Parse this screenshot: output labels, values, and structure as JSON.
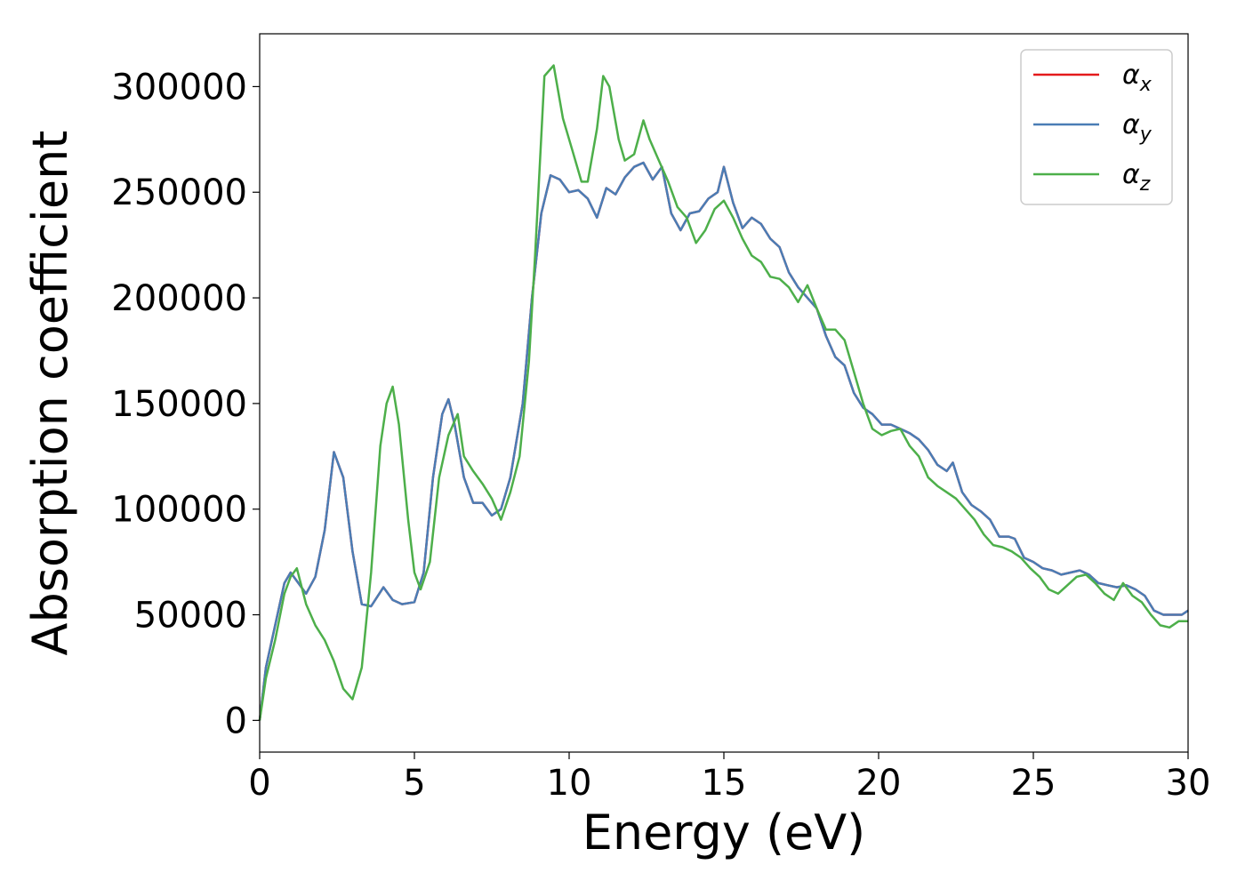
{
  "chart_data": {
    "type": "line",
    "title": "",
    "xlabel": "Energy (eV)",
    "ylabel": "Absorption coefficient",
    "xlim": [
      0,
      30
    ],
    "ylim": [
      -15000,
      325000
    ],
    "x_ticks": [
      0,
      5,
      10,
      15,
      20,
      25,
      30
    ],
    "y_ticks": [
      0,
      50000,
      100000,
      150000,
      200000,
      250000,
      300000
    ],
    "grid": false,
    "legend_position": "top-right",
    "series": [
      {
        "name": "α",
        "subscript": "x",
        "color": "#e41a1c",
        "points": [
          [
            0,
            0
          ],
          [
            0.2,
            25000
          ],
          [
            0.5,
            45000
          ],
          [
            0.8,
            65000
          ],
          [
            1.0,
            70000
          ],
          [
            1.2,
            66000
          ],
          [
            1.5,
            60000
          ],
          [
            1.8,
            68000
          ],
          [
            2.1,
            90000
          ],
          [
            2.4,
            127000
          ],
          [
            2.7,
            115000
          ],
          [
            3.0,
            80000
          ],
          [
            3.3,
            55000
          ],
          [
            3.6,
            54000
          ],
          [
            4.0,
            63000
          ],
          [
            4.3,
            57000
          ],
          [
            4.6,
            55000
          ],
          [
            5.0,
            56000
          ],
          [
            5.3,
            70000
          ],
          [
            5.6,
            115000
          ],
          [
            5.9,
            145000
          ],
          [
            6.1,
            152000
          ],
          [
            6.3,
            140000
          ],
          [
            6.6,
            115000
          ],
          [
            6.9,
            103000
          ],
          [
            7.2,
            103000
          ],
          [
            7.5,
            97000
          ],
          [
            7.8,
            100000
          ],
          [
            8.1,
            115000
          ],
          [
            8.5,
            150000
          ],
          [
            8.8,
            200000
          ],
          [
            9.1,
            240000
          ],
          [
            9.4,
            258000
          ],
          [
            9.7,
            256000
          ],
          [
            10.0,
            250000
          ],
          [
            10.3,
            251000
          ],
          [
            10.6,
            247000
          ],
          [
            10.9,
            238000
          ],
          [
            11.2,
            252000
          ],
          [
            11.5,
            249000
          ],
          [
            11.8,
            257000
          ],
          [
            12.1,
            262000
          ],
          [
            12.4,
            264000
          ],
          [
            12.7,
            256000
          ],
          [
            13.0,
            262000
          ],
          [
            13.3,
            240000
          ],
          [
            13.6,
            232000
          ],
          [
            13.9,
            240000
          ],
          [
            14.2,
            241000
          ],
          [
            14.5,
            247000
          ],
          [
            14.8,
            250000
          ],
          [
            15.0,
            262000
          ],
          [
            15.3,
            245000
          ],
          [
            15.6,
            233000
          ],
          [
            15.9,
            238000
          ],
          [
            16.2,
            235000
          ],
          [
            16.5,
            228000
          ],
          [
            16.8,
            224000
          ],
          [
            17.1,
            212000
          ],
          [
            17.4,
            205000
          ],
          [
            17.7,
            200000
          ],
          [
            18.0,
            195000
          ],
          [
            18.3,
            182000
          ],
          [
            18.6,
            172000
          ],
          [
            18.9,
            168000
          ],
          [
            19.2,
            155000
          ],
          [
            19.5,
            148000
          ],
          [
            19.8,
            145000
          ],
          [
            20.1,
            140000
          ],
          [
            20.4,
            140000
          ],
          [
            20.7,
            138000
          ],
          [
            21.0,
            136000
          ],
          [
            21.3,
            133000
          ],
          [
            21.6,
            128000
          ],
          [
            21.9,
            121000
          ],
          [
            22.2,
            118000
          ],
          [
            22.4,
            122000
          ],
          [
            22.7,
            108000
          ],
          [
            23.0,
            102000
          ],
          [
            23.3,
            99000
          ],
          [
            23.6,
            95000
          ],
          [
            23.9,
            87000
          ],
          [
            24.2,
            87000
          ],
          [
            24.4,
            86000
          ],
          [
            24.7,
            77000
          ],
          [
            25.0,
            75000
          ],
          [
            25.3,
            72000
          ],
          [
            25.6,
            71000
          ],
          [
            25.9,
            69000
          ],
          [
            26.2,
            70000
          ],
          [
            26.5,
            71000
          ],
          [
            26.8,
            69000
          ],
          [
            27.1,
            65000
          ],
          [
            27.4,
            64000
          ],
          [
            27.7,
            63000
          ],
          [
            28.0,
            64000
          ],
          [
            28.3,
            62000
          ],
          [
            28.6,
            59000
          ],
          [
            28.9,
            52000
          ],
          [
            29.2,
            50000
          ],
          [
            29.5,
            50000
          ],
          [
            29.8,
            50000
          ],
          [
            30.0,
            52000
          ]
        ]
      },
      {
        "name": "α",
        "subscript": "y",
        "color": "#4a7db5",
        "points": [
          [
            0,
            0
          ],
          [
            0.2,
            25000
          ],
          [
            0.5,
            45000
          ],
          [
            0.8,
            65000
          ],
          [
            1.0,
            70000
          ],
          [
            1.2,
            66000
          ],
          [
            1.5,
            60000
          ],
          [
            1.8,
            68000
          ],
          [
            2.1,
            90000
          ],
          [
            2.4,
            127000
          ],
          [
            2.7,
            115000
          ],
          [
            3.0,
            80000
          ],
          [
            3.3,
            55000
          ],
          [
            3.6,
            54000
          ],
          [
            4.0,
            63000
          ],
          [
            4.3,
            57000
          ],
          [
            4.6,
            55000
          ],
          [
            5.0,
            56000
          ],
          [
            5.3,
            70000
          ],
          [
            5.6,
            115000
          ],
          [
            5.9,
            145000
          ],
          [
            6.1,
            152000
          ],
          [
            6.3,
            140000
          ],
          [
            6.6,
            115000
          ],
          [
            6.9,
            103000
          ],
          [
            7.2,
            103000
          ],
          [
            7.5,
            97000
          ],
          [
            7.8,
            100000
          ],
          [
            8.1,
            115000
          ],
          [
            8.5,
            150000
          ],
          [
            8.8,
            200000
          ],
          [
            9.1,
            240000
          ],
          [
            9.4,
            258000
          ],
          [
            9.7,
            256000
          ],
          [
            10.0,
            250000
          ],
          [
            10.3,
            251000
          ],
          [
            10.6,
            247000
          ],
          [
            10.9,
            238000
          ],
          [
            11.2,
            252000
          ],
          [
            11.5,
            249000
          ],
          [
            11.8,
            257000
          ],
          [
            12.1,
            262000
          ],
          [
            12.4,
            264000
          ],
          [
            12.7,
            256000
          ],
          [
            13.0,
            262000
          ],
          [
            13.3,
            240000
          ],
          [
            13.6,
            232000
          ],
          [
            13.9,
            240000
          ],
          [
            14.2,
            241000
          ],
          [
            14.5,
            247000
          ],
          [
            14.8,
            250000
          ],
          [
            15.0,
            262000
          ],
          [
            15.3,
            245000
          ],
          [
            15.6,
            233000
          ],
          [
            15.9,
            238000
          ],
          [
            16.2,
            235000
          ],
          [
            16.5,
            228000
          ],
          [
            16.8,
            224000
          ],
          [
            17.1,
            212000
          ],
          [
            17.4,
            205000
          ],
          [
            17.7,
            200000
          ],
          [
            18.0,
            195000
          ],
          [
            18.3,
            182000
          ],
          [
            18.6,
            172000
          ],
          [
            18.9,
            168000
          ],
          [
            19.2,
            155000
          ],
          [
            19.5,
            148000
          ],
          [
            19.8,
            145000
          ],
          [
            20.1,
            140000
          ],
          [
            20.4,
            140000
          ],
          [
            20.7,
            138000
          ],
          [
            21.0,
            136000
          ],
          [
            21.3,
            133000
          ],
          [
            21.6,
            128000
          ],
          [
            21.9,
            121000
          ],
          [
            22.2,
            118000
          ],
          [
            22.4,
            122000
          ],
          [
            22.7,
            108000
          ],
          [
            23.0,
            102000
          ],
          [
            23.3,
            99000
          ],
          [
            23.6,
            95000
          ],
          [
            23.9,
            87000
          ],
          [
            24.2,
            87000
          ],
          [
            24.4,
            86000
          ],
          [
            24.7,
            77000
          ],
          [
            25.0,
            75000
          ],
          [
            25.3,
            72000
          ],
          [
            25.6,
            71000
          ],
          [
            25.9,
            69000
          ],
          [
            26.2,
            70000
          ],
          [
            26.5,
            71000
          ],
          [
            26.8,
            69000
          ],
          [
            27.1,
            65000
          ],
          [
            27.4,
            64000
          ],
          [
            27.7,
            63000
          ],
          [
            28.0,
            64000
          ],
          [
            28.3,
            62000
          ],
          [
            28.6,
            59000
          ],
          [
            28.9,
            52000
          ],
          [
            29.2,
            50000
          ],
          [
            29.5,
            50000
          ],
          [
            29.8,
            50000
          ],
          [
            30.0,
            52000
          ]
        ]
      },
      {
        "name": "α",
        "subscript": "z",
        "color": "#4daf4a",
        "points": [
          [
            0,
            0
          ],
          [
            0.2,
            20000
          ],
          [
            0.5,
            38000
          ],
          [
            0.8,
            60000
          ],
          [
            1.0,
            68000
          ],
          [
            1.2,
            72000
          ],
          [
            1.5,
            55000
          ],
          [
            1.8,
            45000
          ],
          [
            2.1,
            38000
          ],
          [
            2.4,
            28000
          ],
          [
            2.7,
            15000
          ],
          [
            3.0,
            10000
          ],
          [
            3.3,
            25000
          ],
          [
            3.6,
            70000
          ],
          [
            3.9,
            130000
          ],
          [
            4.1,
            150000
          ],
          [
            4.3,
            158000
          ],
          [
            4.5,
            140000
          ],
          [
            4.8,
            95000
          ],
          [
            5.0,
            70000
          ],
          [
            5.2,
            62000
          ],
          [
            5.5,
            75000
          ],
          [
            5.8,
            115000
          ],
          [
            6.1,
            135000
          ],
          [
            6.4,
            145000
          ],
          [
            6.6,
            125000
          ],
          [
            6.9,
            118000
          ],
          [
            7.2,
            112000
          ],
          [
            7.5,
            105000
          ],
          [
            7.8,
            95000
          ],
          [
            8.1,
            108000
          ],
          [
            8.4,
            125000
          ],
          [
            8.7,
            170000
          ],
          [
            8.9,
            220000
          ],
          [
            9.2,
            305000
          ],
          [
            9.5,
            310000
          ],
          [
            9.8,
            285000
          ],
          [
            10.1,
            270000
          ],
          [
            10.4,
            255000
          ],
          [
            10.6,
            255000
          ],
          [
            10.9,
            280000
          ],
          [
            11.1,
            305000
          ],
          [
            11.3,
            300000
          ],
          [
            11.6,
            275000
          ],
          [
            11.8,
            265000
          ],
          [
            12.1,
            268000
          ],
          [
            12.4,
            284000
          ],
          [
            12.6,
            275000
          ],
          [
            12.9,
            265000
          ],
          [
            13.2,
            255000
          ],
          [
            13.5,
            243000
          ],
          [
            13.8,
            238000
          ],
          [
            14.1,
            226000
          ],
          [
            14.4,
            232000
          ],
          [
            14.7,
            242000
          ],
          [
            15.0,
            246000
          ],
          [
            15.3,
            238000
          ],
          [
            15.6,
            228000
          ],
          [
            15.9,
            220000
          ],
          [
            16.2,
            217000
          ],
          [
            16.5,
            210000
          ],
          [
            16.8,
            209000
          ],
          [
            17.1,
            205000
          ],
          [
            17.4,
            198000
          ],
          [
            17.7,
            206000
          ],
          [
            18.0,
            195000
          ],
          [
            18.3,
            185000
          ],
          [
            18.6,
            185000
          ],
          [
            18.9,
            180000
          ],
          [
            19.2,
            165000
          ],
          [
            19.5,
            150000
          ],
          [
            19.8,
            138000
          ],
          [
            20.1,
            135000
          ],
          [
            20.4,
            137000
          ],
          [
            20.7,
            138000
          ],
          [
            21.0,
            130000
          ],
          [
            21.3,
            125000
          ],
          [
            21.6,
            115000
          ],
          [
            21.9,
            111000
          ],
          [
            22.2,
            108000
          ],
          [
            22.5,
            105000
          ],
          [
            22.8,
            100000
          ],
          [
            23.1,
            95000
          ],
          [
            23.4,
            88000
          ],
          [
            23.7,
            83000
          ],
          [
            24.0,
            82000
          ],
          [
            24.3,
            80000
          ],
          [
            24.6,
            77000
          ],
          [
            24.9,
            72000
          ],
          [
            25.2,
            68000
          ],
          [
            25.5,
            62000
          ],
          [
            25.8,
            60000
          ],
          [
            26.1,
            64000
          ],
          [
            26.4,
            68000
          ],
          [
            26.7,
            69000
          ],
          [
            27.0,
            65000
          ],
          [
            27.3,
            60000
          ],
          [
            27.6,
            57000
          ],
          [
            27.9,
            65000
          ],
          [
            28.2,
            59000
          ],
          [
            28.5,
            56000
          ],
          [
            28.8,
            50000
          ],
          [
            29.1,
            45000
          ],
          [
            29.4,
            44000
          ],
          [
            29.7,
            47000
          ],
          [
            30.0,
            47000
          ]
        ]
      }
    ]
  }
}
